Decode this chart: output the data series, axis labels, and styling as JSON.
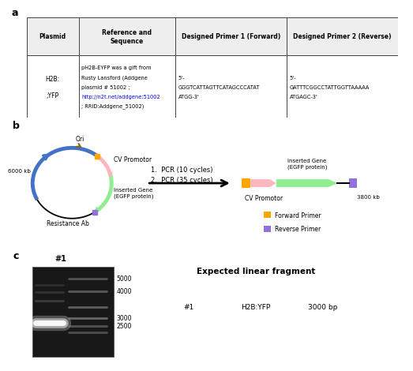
{
  "panel_a": {
    "headers": [
      "Plasmid",
      "Reference and\nSequence",
      "Designed Primer 1 (Forward)",
      "Designed Primer 2 (Reverse)"
    ],
    "col0": "H2B:\n\n;YFP",
    "col1_lines": [
      "pH2B-EYFP was a gift from",
      "Rusty Lansford (Addgene",
      "plasmid # 51002 ;",
      "http://n2t.net/addgene:51002",
      "; RRID:Addgene_51002)"
    ],
    "col2_lines": [
      "5'-",
      "GGGTCATTAGTTCATAGCCCATAT",
      "ATGG-3'"
    ],
    "col3_lines": [
      "5'-",
      "GATTTCGGCCTATTGGTTAAAAA",
      "ATGAGC-3'"
    ],
    "link_color": "#0000EE"
  },
  "panel_b": {
    "circle_color": "#4472C4",
    "ori_color": "#8B6914",
    "cv_promotor_color": "#FFB6C1",
    "inserted_gene_color": "#90EE90",
    "forward_primer_color": "#FFA500",
    "reverse_primer_color": "#9370DB",
    "pcr_steps": [
      "1.  PCR (10 cycles)",
      "2.  PCR (35 cycles)"
    ],
    "ori_label": "Ori",
    "size_label": "6000 kb",
    "cv_label": "CV Promotor",
    "inserted_label": "Inserted Gene\n(EGFP protein)",
    "resistance_label": "Resistance Ab",
    "linear_cv_label": "CV Promotor",
    "linear_size_label": "3800 kb",
    "linear_inserted_label": "Inserted Gene\n(EGFP protein)",
    "legend_forward": "Forward Primer",
    "legend_reverse": "Reverse Primer"
  },
  "panel_c": {
    "size_labels": [
      "5000",
      "4000",
      "3000",
      "2500"
    ],
    "label": "#1",
    "expected_title": "Expected linear fragment",
    "expected_row": [
      "#1",
      "H2B:YFP",
      "3000 bp"
    ]
  },
  "bg_color": "#FFFFFF"
}
